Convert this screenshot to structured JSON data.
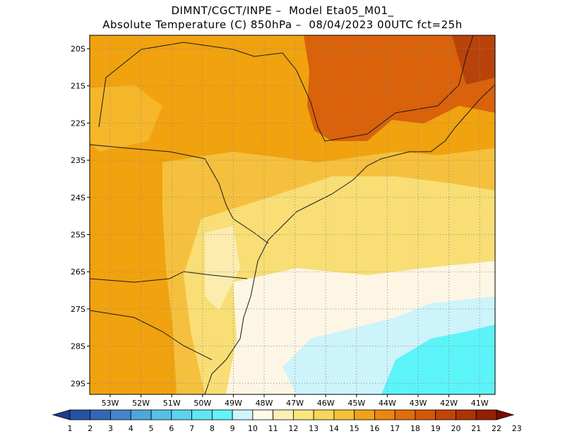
{
  "title": {
    "line1": "DIMNT/CGCT/INPE –  Model Eta05_M01_",
    "line2": "Absolute Temperature (C) 850hPa –  08/04/2023 00UTC fct=25h"
  },
  "map": {
    "lat_labels": [
      "20S",
      "21S",
      "22S",
      "23S",
      "24S",
      "25S",
      "26S",
      "27S",
      "28S",
      "29S"
    ],
    "lon_labels": [
      "53W",
      "52W",
      "51W",
      "50W",
      "49W",
      "48W",
      "47W",
      "46W",
      "45W",
      "44W",
      "43W",
      "42W",
      "41W"
    ],
    "grid": "dotted",
    "field": [
      {
        "name": "south-west-interior",
        "level": 17,
        "color": "#f0a20f"
      },
      {
        "name": "north-east-warm",
        "level": 19,
        "color": "#d9620a"
      },
      {
        "name": "coastal-belt",
        "level": 15,
        "color": "#f5c03e"
      },
      {
        "name": "ocean-mid",
        "level": 14,
        "color": "#f8de75"
      },
      {
        "name": "ocean-cool",
        "level": 12,
        "color": "#fdf6e4"
      },
      {
        "name": "ocean-cold",
        "level": 11,
        "color": "#cdf3fb"
      },
      {
        "name": "ocean-coldest",
        "level": 10,
        "color": "#5cf4f8"
      }
    ]
  },
  "colorbar": {
    "labels": [
      "1",
      "2",
      "3",
      "4",
      "5",
      "6",
      "7",
      "8",
      "9",
      "10",
      "11",
      "12",
      "13",
      "14",
      "15",
      "16",
      "17",
      "18",
      "19",
      "20",
      "21",
      "22",
      "23"
    ],
    "colors": [
      "#1a3d8f",
      "#2652a3",
      "#3368b5",
      "#4486c8",
      "#4fa6da",
      "#56c0e6",
      "#5ad4ee",
      "#5fe6f5",
      "#62f4f9",
      "#cff5fc",
      "#fffbea",
      "#fdf0b4",
      "#fbe67e",
      "#f8d65a",
      "#f5c03a",
      "#f0a21c",
      "#ea8612",
      "#e16c0c",
      "#d55808",
      "#c24406",
      "#ac3304",
      "#942003",
      "#7a0d04"
    ]
  }
}
